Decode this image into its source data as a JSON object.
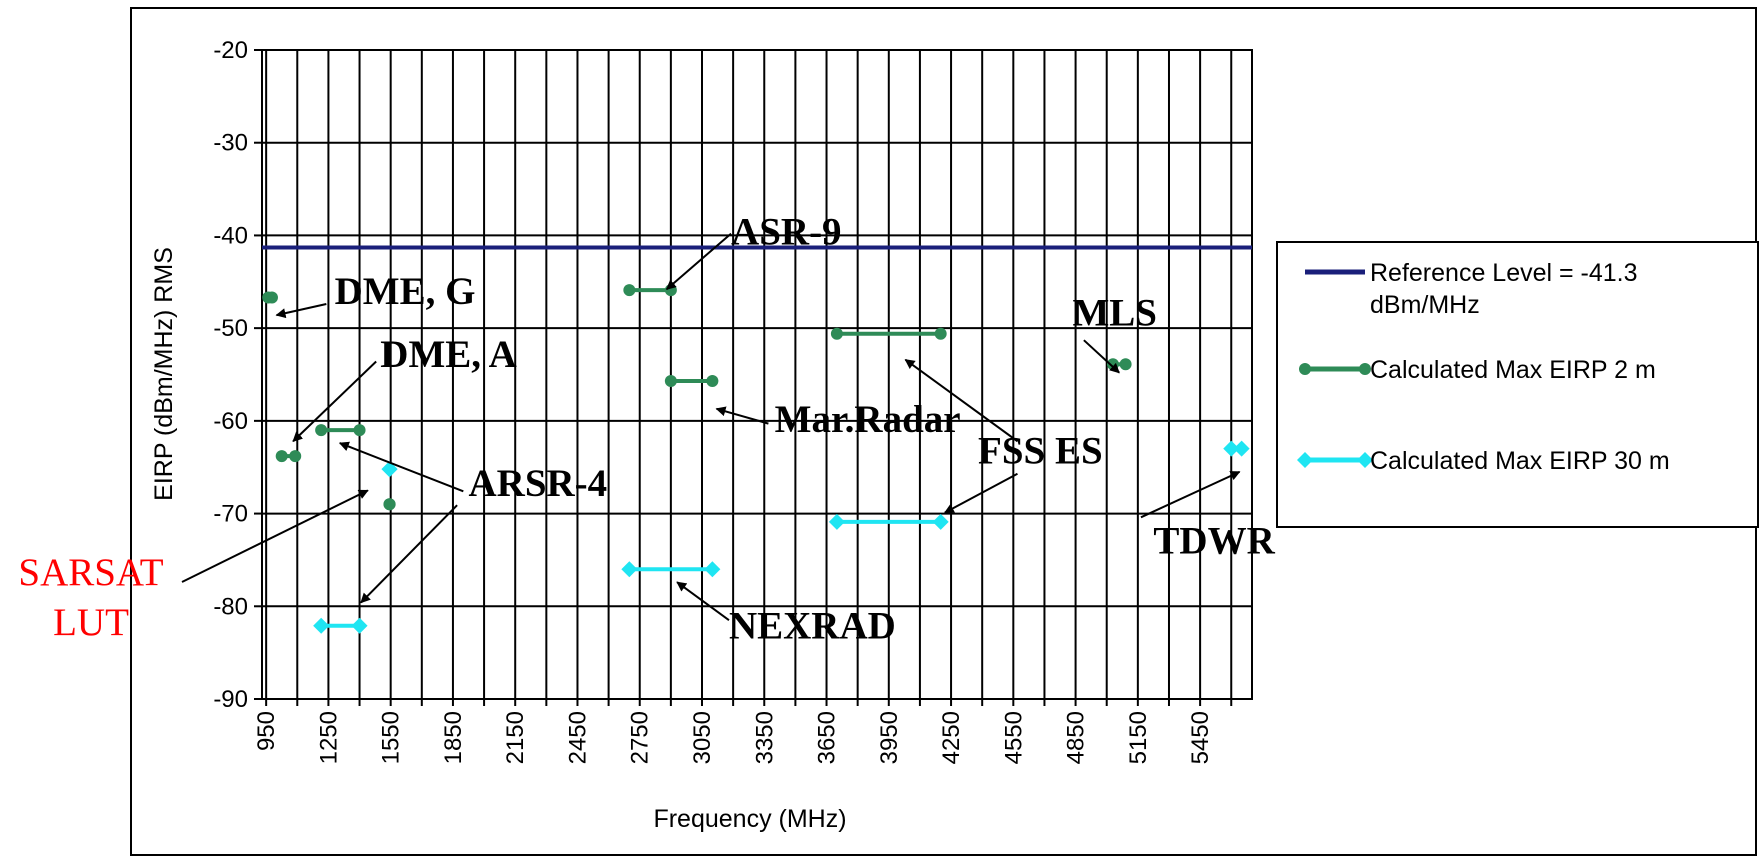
{
  "chart_data": {
    "type": "line",
    "xlabel": "Frequency (MHz)",
    "ylabel": "EIRP (dBm/MHz) RMS",
    "xlim": [
      930,
      5700
    ],
    "ylim": [
      -90,
      -20
    ],
    "x_ticks": [
      950,
      1250,
      1550,
      1850,
      2150,
      2450,
      2750,
      3050,
      3350,
      3650,
      3950,
      4250,
      4550,
      4850,
      5150,
      5450
    ],
    "y_ticks": [
      -20,
      -30,
      -40,
      -50,
      -60,
      -70,
      -80,
      -90
    ],
    "grid": true,
    "legend_position": "right",
    "colors": {
      "reference": "#1a1f7a",
      "green": "#2e8b57",
      "cyan": "#1fe5f2",
      "annotation_red": "#ff0000"
    },
    "series": [
      {
        "name": "Reference Level = -41.3 dBm/MHz",
        "legend_lines": [
          "Reference Level = -41.3",
          "dBm/MHz"
        ],
        "color": "#1a1f7a",
        "marker": "none",
        "segments": [
          [
            [
              930,
              -41.3
            ],
            [
              5700,
              -41.3
            ]
          ]
        ]
      },
      {
        "name": "Calculated Max EIRP 2 m",
        "legend_lines": [
          "Calculated Max EIRP 2 m"
        ],
        "color": "#2e8b57",
        "marker": "circle",
        "segments": [
          [
            [
              960,
              -46.7
            ],
            [
              978,
              -46.7
            ]
          ],
          [
            [
              1025,
              -63.8
            ],
            [
              1090,
              -63.8
            ]
          ],
          [
            [
              1215,
              -61
            ],
            [
              1400,
              -61
            ]
          ],
          [
            [
              1544,
              -69
            ],
            [
              1545,
              -69
            ]
          ],
          [
            [
              2700,
              -45.9
            ],
            [
              2900,
              -45.9
            ]
          ],
          [
            [
              2900,
              -55.7
            ],
            [
              3100,
              -55.7
            ]
          ],
          [
            [
              3700,
              -50.6
            ],
            [
              4200,
              -50.6
            ]
          ],
          [
            [
              5030,
              -53.9
            ],
            [
              5091,
              -53.9
            ]
          ]
        ]
      },
      {
        "name": "Calculated Max EIRP 30 m",
        "legend_lines": [
          "Calculated Max EIRP 30 m"
        ],
        "color": "#1fe5f2",
        "marker": "diamond",
        "segments": [
          [
            [
              1544,
              -65.2
            ],
            [
              1545,
              -65.2
            ]
          ],
          [
            [
              1215,
              -82.1
            ],
            [
              1400,
              -82.1
            ]
          ],
          [
            [
              2700,
              -76
            ],
            [
              3100,
              -76
            ]
          ],
          [
            [
              3700,
              -70.9
            ],
            [
              4200,
              -70.9
            ]
          ],
          [
            [
              5600,
              -63
            ],
            [
              5650,
              -63
            ]
          ]
        ]
      }
    ],
    "annotations": [
      {
        "text": "DME, G",
        "color": "#000000",
        "text_at": [
          1280,
          -47.4
        ],
        "arrow_from": [
          1240,
          -47.4
        ],
        "arrow_to": [
          1000,
          -48.6
        ]
      },
      {
        "text": "DME, A",
        "color": "#000000",
        "text_at": [
          1500,
          -54.2
        ],
        "arrow_from": [
          1480,
          -53.6
        ],
        "arrow_to": [
          1080,
          -62.2
        ]
      },
      {
        "text": "ARSR-4",
        "color": "#000000",
        "text_at": [
          1925,
          -68.1
        ],
        "arrow_from": [
          1900,
          -67.6
        ],
        "arrow_to": [
          1305,
          -62.4
        ]
      },
      {
        "text": "",
        "color": "#000000",
        "text_at": null,
        "arrow_from": [
          1870,
          -69.1
        ],
        "arrow_to": [
          1407,
          -79.6
        ]
      },
      {
        "text": "ASR-9",
        "color": "#000000",
        "text_at": [
          3190,
          -41.0
        ],
        "arrow_from": [
          3190,
          -39.8
        ],
        "arrow_to": [
          2880,
          -45.8
        ]
      },
      {
        "text": "Mar.Radar",
        "color": "#000000",
        "text_at": [
          3400,
          -61.2
        ],
        "arrow_from": [
          3370,
          -60.3
        ],
        "arrow_to": [
          3120,
          -58.7
        ]
      },
      {
        "text": "NEXRAD",
        "color": "#000000",
        "text_at": [
          3180,
          -83.5
        ],
        "arrow_from": [
          3180,
          -81.5
        ],
        "arrow_to": [
          2930,
          -77.4
        ]
      },
      {
        "text": "FSS ES",
        "color": "#000000",
        "text_at": [
          4380,
          -64.6
        ],
        "arrow_from": [
          4570,
          -62.2
        ],
        "arrow_to": [
          4030,
          -53.4
        ]
      },
      {
        "text": "",
        "color": "#000000",
        "text_at": null,
        "arrow_from": [
          4570,
          -65.7
        ],
        "arrow_to": [
          4220,
          -69.9
        ]
      },
      {
        "text": "MLS",
        "color": "#000000",
        "text_at": [
          4835,
          -49.7
        ],
        "arrow_from": [
          4890,
          -51.3
        ],
        "arrow_to": [
          5060,
          -54.8
        ]
      },
      {
        "text": "TDWR",
        "color": "#000000",
        "text_at": [
          5225,
          -74.3
        ],
        "arrow_from": [
          5165,
          -70.4
        ],
        "arrow_to": [
          5640,
          -65.5
        ]
      },
      {
        "text": "SARSAT",
        "color": "#ff0000",
        "text_at": null,
        "arrow_from": null,
        "arrow_to": null
      },
      {
        "text": "LUT",
        "color": "#ff0000",
        "text_at": null,
        "arrow_from": null,
        "arrow_to": null
      }
    ]
  }
}
